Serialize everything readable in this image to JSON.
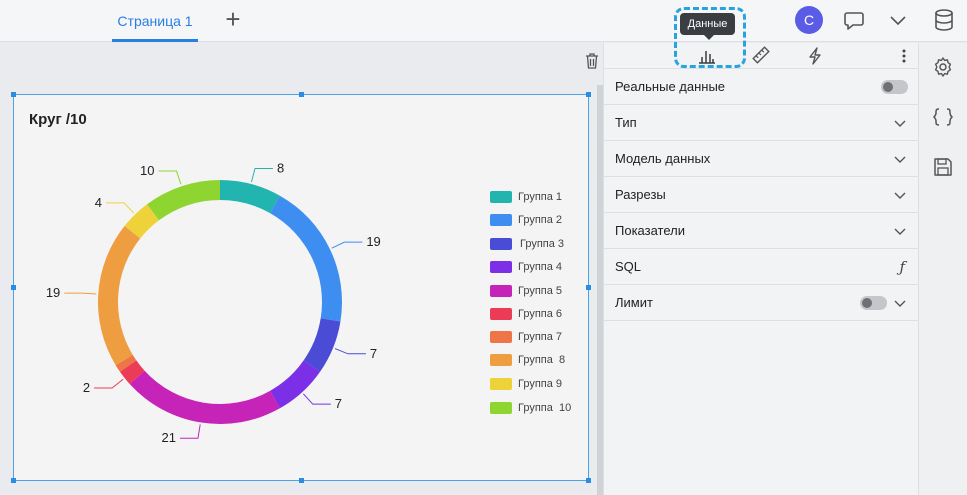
{
  "header": {
    "tab_label": "Страница 1",
    "avatar_letter": "С"
  },
  "widget": {
    "title": "Круг /10"
  },
  "chart_data": {
    "type": "pie",
    "title": "Круг /10",
    "series": [
      {
        "name": "Группа 1",
        "value": 8,
        "color": "#22b5b0"
      },
      {
        "name": "Группа 2",
        "value": 19,
        "color": "#3d8ef0"
      },
      {
        "name": "Группа 3",
        "value": 7,
        "color": "#4a4cd6"
      },
      {
        "name": "Группа 4",
        "value": 7,
        "color": "#7b2fe6"
      },
      {
        "name": "Группа 5",
        "value": 21,
        "color": "#c624b8"
      },
      {
        "name": "Группа 6",
        "value": 2,
        "color": "#ec3b57"
      },
      {
        "name": "Группа 7",
        "value": 1,
        "color": "#ee7548"
      },
      {
        "name": "Группа  8",
        "value": 19,
        "color": "#ee9e40"
      },
      {
        "name": "Группа 9",
        "value": 4,
        "color": "#efd13a"
      },
      {
        "name": "Группа  10",
        "value": 10,
        "color": "#8fd531"
      }
    ],
    "data_labels": [
      "8",
      "19",
      "7",
      "7",
      "21",
      "2",
      "",
      "19",
      "4",
      "10"
    ],
    "legend_position": "right"
  },
  "legend": {
    "g1": "Группа 1",
    "g2": "Группа 2",
    "g3": "Группа 3",
    "g4": "Группа 4",
    "g5": "Группа 5",
    "g6": "Группа 6",
    "g7": "Группа 7",
    "g8": "Группа  8",
    "g9": "Группа 9",
    "g10": "Группа  10"
  },
  "tooltip": {
    "text": "Данные"
  },
  "panel": {
    "real_data": "Реальные данные",
    "type": "Тип",
    "data_model": "Модель данных",
    "slices": "Разрезы",
    "indicators": "Показатели",
    "sql": "SQL",
    "sql_fn": "ƒ",
    "limit": "Лимит"
  },
  "colors": {
    "accent": "#2a7de1",
    "highlight": "#29a3e0",
    "avatar": "#5b5ce6"
  }
}
